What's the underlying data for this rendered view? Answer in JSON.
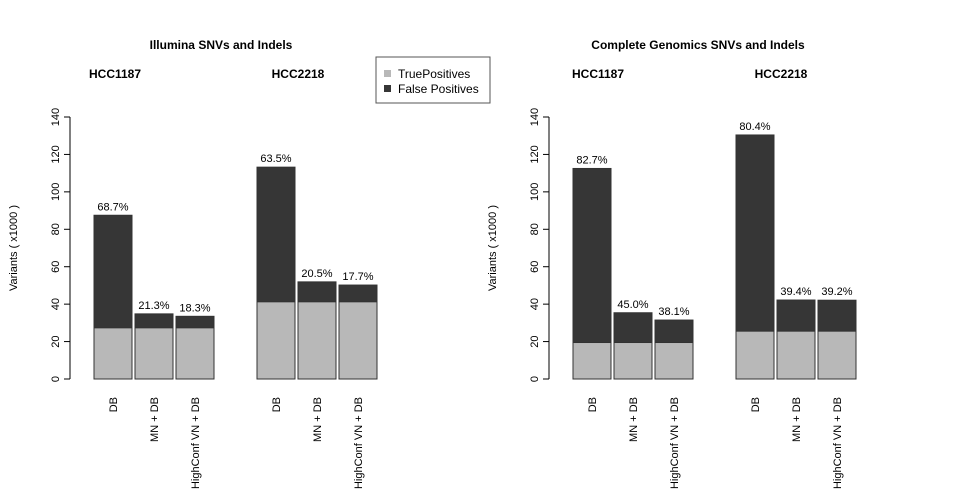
{
  "chart_data": [
    {
      "type": "bar",
      "stacked": true,
      "title": "Illumina SNVs and Indels",
      "ylabel": "Variants ( x1000 )",
      "ylim": [
        0,
        140
      ],
      "yticks": [
        0,
        20,
        40,
        60,
        80,
        100,
        120,
        140
      ],
      "groups": [
        {
          "name": "HCC1187",
          "categories": [
            "DB",
            "MN + DB",
            "HighConf VN + DB"
          ],
          "true_positives": [
            27.4,
            27.4,
            27.4
          ],
          "false_positives": [
            60.1,
            7.4,
            6.1
          ],
          "labels": [
            "68.7%",
            "21.3%",
            "18.3%"
          ]
        },
        {
          "name": "HCC2218",
          "categories": [
            "DB",
            "MN + DB",
            "HighConf VN + DB"
          ],
          "true_positives": [
            41.3,
            41.3,
            41.3
          ],
          "false_positives": [
            71.9,
            10.6,
            8.9
          ],
          "labels": [
            "63.5%",
            "20.5%",
            "17.7%"
          ]
        }
      ],
      "legend": {
        "position": "top-right",
        "entries": [
          {
            "name": "TruePositives",
            "color": "#b8b8b8"
          },
          {
            "name": "False Positives",
            "color": "#363636"
          }
        ]
      }
    },
    {
      "type": "bar",
      "stacked": true,
      "title": "Complete Genomics SNVs and Indels",
      "ylabel": "Variants ( x1000 )",
      "ylim": [
        0,
        140
      ],
      "yticks": [
        0,
        20,
        40,
        60,
        80,
        100,
        120,
        140
      ],
      "groups": [
        {
          "name": "HCC1187",
          "categories": [
            "DB",
            "MN + DB",
            "HighConf VN + DB"
          ],
          "true_positives": [
            19.5,
            19.5,
            19.5
          ],
          "false_positives": [
            93.0,
            15.9,
            12.0
          ],
          "labels": [
            "82.7%",
            "45.0%",
            "38.1%"
          ]
        },
        {
          "name": "HCC2218",
          "categories": [
            "DB",
            "MN + DB",
            "HighConf VN + DB"
          ],
          "true_positives": [
            25.6,
            25.6,
            25.6
          ],
          "false_positives": [
            104.8,
            16.6,
            16.5
          ],
          "labels": [
            "80.4%",
            "39.4%",
            "39.2%"
          ]
        }
      ]
    }
  ]
}
